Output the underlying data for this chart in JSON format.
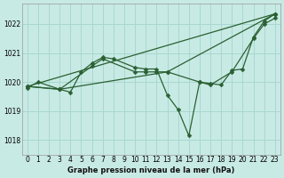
{
  "title": "Graphe pression niveau de la mer (hPa)",
  "bg_color": "#c8eae4",
  "grid_color": "#a8d8d0",
  "line_color": "#2a6032",
  "xlim": [
    -0.5,
    23.5
  ],
  "ylim": [
    1017.5,
    1022.7
  ],
  "yticks": [
    1018,
    1019,
    1020,
    1021,
    1022
  ],
  "xticks": [
    0,
    1,
    2,
    3,
    4,
    5,
    6,
    7,
    8,
    9,
    10,
    11,
    12,
    13,
    14,
    15,
    16,
    17,
    18,
    19,
    20,
    21,
    22,
    23
  ],
  "series": [
    {
      "x": [
        0,
        1,
        3,
        4,
        5,
        6,
        7,
        8,
        10,
        11,
        12,
        13,
        14,
        15,
        16,
        17,
        18,
        19,
        20,
        21,
        22,
        23
      ],
      "y": [
        1019.8,
        1020.0,
        1019.75,
        1019.65,
        1020.35,
        1020.65,
        1020.85,
        1020.8,
        1020.5,
        1020.45,
        1020.45,
        1019.55,
        1019.05,
        1018.15,
        1020.0,
        1019.95,
        1019.9,
        1020.4,
        1020.45,
        1021.55,
        1022.1,
        1022.35
      ]
    },
    {
      "x": [
        0,
        23
      ],
      "y": [
        1019.85,
        1022.35
      ]
    },
    {
      "x": [
        0,
        3,
        6,
        7,
        10,
        11,
        12,
        13,
        23
      ],
      "y": [
        1019.85,
        1019.75,
        1020.55,
        1020.8,
        1020.35,
        1020.35,
        1020.35,
        1020.35,
        1022.35
      ]
    },
    {
      "x": [
        0,
        3,
        13,
        16,
        17,
        19,
        21,
        22,
        23
      ],
      "y": [
        1019.85,
        1019.75,
        1020.35,
        1020.0,
        1019.9,
        1020.35,
        1021.5,
        1022.0,
        1022.2
      ]
    }
  ]
}
